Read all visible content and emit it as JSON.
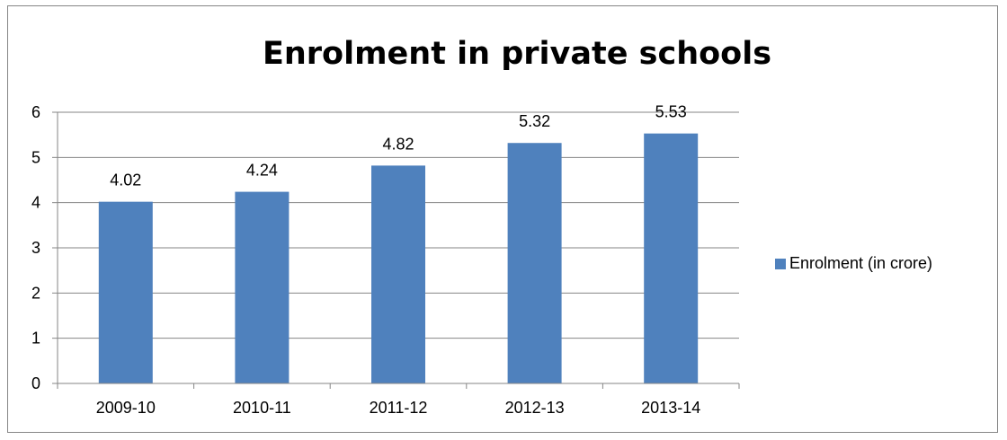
{
  "chart_data": {
    "type": "bar",
    "title": "Enrolment in private schools",
    "categories": [
      "2009-10",
      "2010-11",
      "2011-12",
      "2012-13",
      "2013-14"
    ],
    "series": [
      {
        "name": "Enrolment (in crore)",
        "values": [
          4.02,
          4.24,
          4.82,
          5.32,
          5.53
        ]
      }
    ],
    "data_labels": [
      "4.02",
      "4.24",
      "4.82",
      "5.32",
      "5.53"
    ],
    "y_ticks": [
      "0",
      "1",
      "2",
      "3",
      "4",
      "5",
      "6"
    ],
    "ylim": [
      0,
      6
    ],
    "xlabel": "",
    "ylabel": "",
    "grid": true,
    "legend_position": "right",
    "colors": {
      "bar": "#4f81bd",
      "gridline": "#868686",
      "axis": "#868686"
    }
  }
}
